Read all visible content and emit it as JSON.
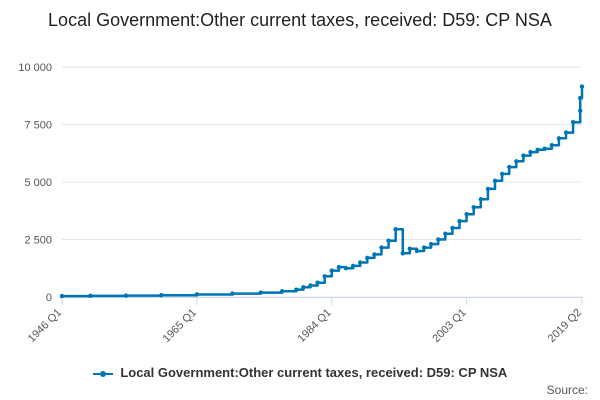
{
  "title": "Local Government:Other current taxes, received: D59: CP NSA",
  "source_label": "Source:",
  "colors": {
    "series": "#0075b4",
    "grid": "#e6e6e6",
    "axis": "#ccd6eb"
  },
  "chart_data": {
    "type": "line",
    "title": "Local Government:Other current taxes, received: D59: CP NSA",
    "xlabel": "",
    "ylabel": "",
    "x_tick_labels": [
      "1946 Q1",
      "1965 Q1",
      "1984 Q1",
      "2003 Q1",
      "2019 Q2"
    ],
    "y_tick_labels": [
      "0",
      "2 500",
      "5 000",
      "7 500",
      "10 000"
    ],
    "ylim": [
      0,
      10000
    ],
    "grid": true,
    "legend_position": "bottom",
    "series": [
      {
        "name": "Local Government:Other current taxes, received: D59: CP NSA",
        "points": [
          [
            "1946",
            40
          ],
          [
            "1950",
            50
          ],
          [
            "1955",
            60
          ],
          [
            "1960",
            80
          ],
          [
            "1965",
            110
          ],
          [
            "1970",
            150
          ],
          [
            "1974",
            190
          ],
          [
            "1977",
            250
          ],
          [
            "1979",
            320
          ],
          [
            "1980",
            420
          ],
          [
            "1981",
            500
          ],
          [
            "1982",
            620
          ],
          [
            "1983",
            900
          ],
          [
            "1984",
            1150
          ],
          [
            "1985",
            1300
          ],
          [
            "1986",
            1250
          ],
          [
            "1987",
            1350
          ],
          [
            "1988",
            1500
          ],
          [
            "1989",
            1700
          ],
          [
            "1990",
            1850
          ],
          [
            "1991",
            2150
          ],
          [
            "1992",
            2450
          ],
          [
            "1993",
            2950
          ],
          [
            "1994",
            1900
          ],
          [
            "1995",
            2100
          ],
          [
            "1996",
            2000
          ],
          [
            "1997",
            2150
          ],
          [
            "1998",
            2300
          ],
          [
            "1999",
            2500
          ],
          [
            "2000",
            2750
          ],
          [
            "2001",
            3000
          ],
          [
            "2002",
            3300
          ],
          [
            "2003",
            3600
          ],
          [
            "2004",
            3900
          ],
          [
            "2005",
            4250
          ],
          [
            "2006",
            4700
          ],
          [
            "2007",
            5050
          ],
          [
            "2008",
            5350
          ],
          [
            "2009",
            5650
          ],
          [
            "2010",
            5900
          ],
          [
            "2011",
            6150
          ],
          [
            "2012",
            6300
          ],
          [
            "2013",
            6400
          ],
          [
            "2014",
            6450
          ],
          [
            "2015",
            6600
          ],
          [
            "2016",
            6900
          ],
          [
            "2017",
            7150
          ],
          [
            "2018",
            7600
          ],
          [
            "2019",
            8100
          ],
          [
            "2019 Q1",
            8650
          ],
          [
            "2019 Q2",
            9150
          ]
        ]
      }
    ]
  }
}
